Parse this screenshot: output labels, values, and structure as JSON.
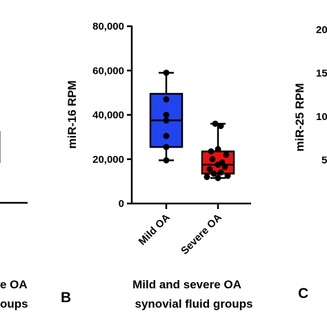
{
  "chart_data": [
    {
      "panel_label": "",
      "type": "box",
      "xlabel_fragments": [
        "e OA",
        "oups"
      ],
      "note": ""
    },
    {
      "panel_label": "B",
      "type": "box",
      "ylabel": "miR-16 RPM",
      "ylim": [
        0,
        80000
      ],
      "yticks": [
        "0",
        "20,000",
        "40,000",
        "60,000",
        "80,000"
      ],
      "ytick_values": [
        0,
        20000,
        40000,
        60000,
        80000
      ],
      "categories": [
        "Mild OA",
        "Severe OA"
      ],
      "caption_line1": "Mild and severe OA",
      "caption_line2": "synovial fluid groups",
      "series": [
        {
          "category": "Mild OA",
          "color": "#2244ee",
          "min": 19500,
          "q1": 25500,
          "median": 37500,
          "q3": 49500,
          "max": 59000,
          "points": [
            59000,
            47000,
            40000,
            37500,
            30500,
            25500,
            19500
          ]
        },
        {
          "category": "Severe OA",
          "color": "#ee1111",
          "min": 11500,
          "q1": 13500,
          "median": 17500,
          "q3": 23500,
          "max": 36000,
          "points": [
            36000,
            35000,
            24500,
            23500,
            22000,
            20000,
            18500,
            17500,
            16500,
            15500,
            14000,
            13500,
            12500,
            12000,
            11500
          ]
        }
      ]
    },
    {
      "panel_label": "C",
      "type": "box",
      "ylabel": "miR-25 RPM",
      "yticks_partial": [
        "20",
        "15",
        "10",
        "5"
      ]
    }
  ]
}
